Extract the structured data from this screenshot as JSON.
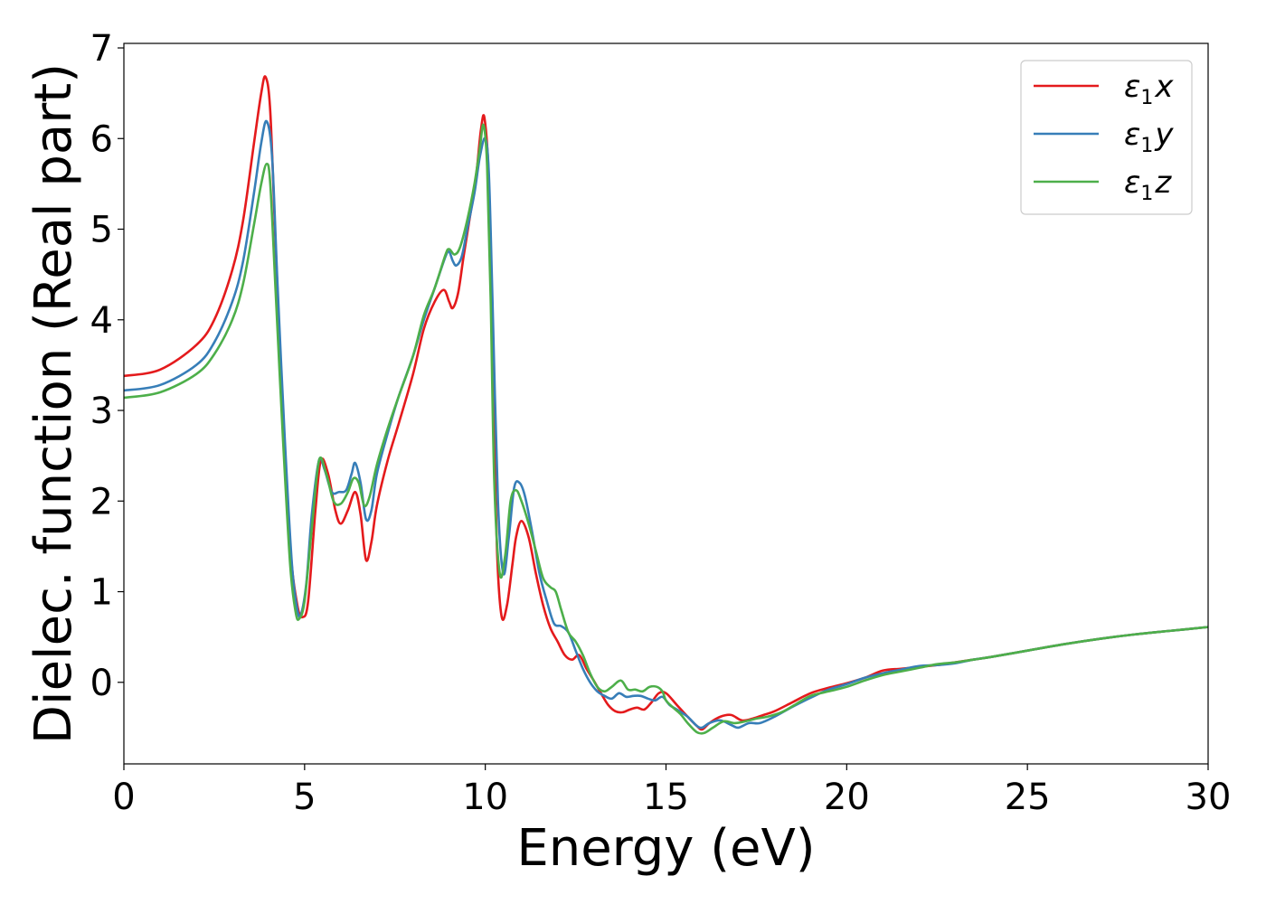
{
  "chart_data": {
    "type": "line",
    "xlabel": "Energy (eV)",
    "ylabel": "Dielec. function (Real part)",
    "xlim": [
      0,
      30
    ],
    "ylim": [
      -0.9,
      7.05
    ],
    "xticks": [
      0,
      5,
      10,
      15,
      20,
      25,
      30
    ],
    "yticks": [
      0,
      1,
      2,
      3,
      4,
      5,
      6,
      7
    ],
    "xtick_labels": [
      "0",
      "5",
      "10",
      "15",
      "20",
      "25",
      "30"
    ],
    "ytick_labels": [
      "0",
      "1",
      "2",
      "3",
      "4",
      "5",
      "6",
      "7"
    ],
    "grid": false,
    "legend_position": "top-right",
    "series": [
      {
        "name": "ε1x",
        "symbol": "ε",
        "subscript": "1",
        "suffix": "x",
        "color": "#e41a1c",
        "x": [
          0,
          1,
          2,
          2.5,
          3,
          3.3,
          3.6,
          3.8,
          3.92,
          4.05,
          4.2,
          4.4,
          4.6,
          4.8,
          4.95,
          5.1,
          5.3,
          5.45,
          5.65,
          5.85,
          6.0,
          6.2,
          6.4,
          6.55,
          6.7,
          6.85,
          7.0,
          7.3,
          7.6,
          8.0,
          8.3,
          8.6,
          8.85,
          9.0,
          9.1,
          9.25,
          9.4,
          9.6,
          9.75,
          9.88,
          9.98,
          10.1,
          10.2,
          10.32,
          10.45,
          10.6,
          10.75,
          10.85,
          11.0,
          11.2,
          11.4,
          11.6,
          11.8,
          12.0,
          12.2,
          12.4,
          12.6,
          12.8,
          13.0,
          13.2,
          13.4,
          13.6,
          13.8,
          14.0,
          14.2,
          14.4,
          14.6,
          14.8,
          15.0,
          15.3,
          15.6,
          15.85,
          16.0,
          16.2,
          16.5,
          16.8,
          17.1,
          17.4,
          17.7,
          18.0,
          18.5,
          19.0,
          19.5,
          20.0,
          20.5,
          21.0,
          21.5,
          22.0,
          22.5,
          23.0,
          23.5,
          24.0,
          25.0,
          26.0,
          27.0,
          28.0,
          29.0,
          30.0
        ],
        "y": [
          3.38,
          3.45,
          3.72,
          4.0,
          4.55,
          5.1,
          5.95,
          6.5,
          6.68,
          6.3,
          4.8,
          3.0,
          1.5,
          0.85,
          0.72,
          0.9,
          1.9,
          2.45,
          2.3,
          1.9,
          1.75,
          1.9,
          2.1,
          1.85,
          1.35,
          1.55,
          1.95,
          2.45,
          2.85,
          3.4,
          3.9,
          4.2,
          4.33,
          4.2,
          4.13,
          4.3,
          4.7,
          5.2,
          5.6,
          6.1,
          6.22,
          5.5,
          3.5,
          1.5,
          0.73,
          0.85,
          1.3,
          1.6,
          1.78,
          1.6,
          1.2,
          0.85,
          0.6,
          0.45,
          0.3,
          0.25,
          0.3,
          0.15,
          0.02,
          -0.12,
          -0.25,
          -0.32,
          -0.33,
          -0.3,
          -0.28,
          -0.3,
          -0.22,
          -0.12,
          -0.12,
          -0.25,
          -0.38,
          -0.48,
          -0.52,
          -0.45,
          -0.38,
          -0.36,
          -0.42,
          -0.4,
          -0.36,
          -0.32,
          -0.22,
          -0.12,
          -0.06,
          -0.01,
          0.05,
          0.13,
          0.15,
          0.17,
          0.19,
          0.22,
          0.25,
          0.28,
          0.35,
          0.42,
          0.48,
          0.53,
          0.57,
          0.61
        ]
      },
      {
        "name": "ε1y",
        "symbol": "ε",
        "subscript": "1",
        "suffix": "y",
        "color": "#377eb8",
        "x": [
          0,
          1,
          2,
          2.5,
          3,
          3.3,
          3.6,
          3.8,
          3.95,
          4.1,
          4.25,
          4.45,
          4.65,
          4.8,
          4.9,
          5.05,
          5.2,
          5.4,
          5.55,
          5.75,
          5.95,
          6.15,
          6.3,
          6.4,
          6.55,
          6.7,
          6.85,
          7.0,
          7.3,
          7.6,
          8.0,
          8.3,
          8.6,
          8.9,
          9.0,
          9.1,
          9.2,
          9.35,
          9.5,
          9.7,
          9.85,
          10.0,
          10.1,
          10.2,
          10.35,
          10.5,
          10.65,
          10.8,
          10.95,
          11.1,
          11.3,
          11.5,
          11.7,
          11.9,
          12.1,
          12.3,
          12.5,
          12.7,
          12.9,
          13.1,
          13.3,
          13.5,
          13.7,
          13.9,
          14.1,
          14.3,
          14.5,
          14.7,
          14.9,
          15.1,
          15.3,
          15.6,
          15.85,
          16.0,
          16.2,
          16.5,
          16.8,
          17.0,
          17.3,
          17.6,
          18.0,
          18.5,
          19.0,
          19.5,
          20.0,
          20.5,
          21.0,
          21.5,
          22.0,
          22.5,
          23.0,
          23.5,
          24.0,
          25.0,
          26.0,
          27.0,
          28.0,
          29.0,
          30.0
        ],
        "y": [
          3.22,
          3.28,
          3.5,
          3.75,
          4.2,
          4.65,
          5.4,
          5.95,
          6.19,
          5.8,
          4.4,
          2.7,
          1.3,
          0.8,
          0.75,
          1.1,
          1.85,
          2.45,
          2.35,
          2.1,
          2.1,
          2.12,
          2.3,
          2.42,
          2.2,
          1.8,
          1.9,
          2.3,
          2.75,
          3.15,
          3.6,
          4.0,
          4.35,
          4.7,
          4.75,
          4.65,
          4.6,
          4.7,
          5.0,
          5.4,
          5.8,
          6.0,
          5.6,
          4.2,
          2.0,
          1.2,
          1.6,
          2.15,
          2.2,
          2.05,
          1.65,
          1.2,
          0.9,
          0.65,
          0.62,
          0.55,
          0.35,
          0.15,
          0.0,
          -0.1,
          -0.15,
          -0.18,
          -0.12,
          -0.16,
          -0.15,
          -0.15,
          -0.18,
          -0.2,
          -0.16,
          -0.25,
          -0.3,
          -0.38,
          -0.48,
          -0.5,
          -0.45,
          -0.42,
          -0.47,
          -0.5,
          -0.45,
          -0.45,
          -0.38,
          -0.27,
          -0.17,
          -0.08,
          -0.02,
          0.05,
          0.1,
          0.14,
          0.18,
          0.19,
          0.21,
          0.25,
          0.28,
          0.35,
          0.42,
          0.48,
          0.53,
          0.57,
          0.61
        ]
      },
      {
        "name": "ε1z",
        "symbol": "ε",
        "subscript": "1",
        "suffix": "z",
        "color": "#4daf4a",
        "x": [
          0,
          1,
          2,
          2.5,
          3,
          3.3,
          3.6,
          3.8,
          3.95,
          4.05,
          4.2,
          4.4,
          4.6,
          4.75,
          4.85,
          5.0,
          5.2,
          5.4,
          5.6,
          5.8,
          6.0,
          6.2,
          6.35,
          6.5,
          6.65,
          6.8,
          7.0,
          7.3,
          7.6,
          8.0,
          8.3,
          8.6,
          8.9,
          9.0,
          9.15,
          9.3,
          9.5,
          9.7,
          9.85,
          9.95,
          10.05,
          10.15,
          10.25,
          10.4,
          10.55,
          10.7,
          10.85,
          11.0,
          11.2,
          11.4,
          11.6,
          11.8,
          11.95,
          12.1,
          12.3,
          12.5,
          12.7,
          12.9,
          13.1,
          13.3,
          13.5,
          13.75,
          13.95,
          14.15,
          14.35,
          14.55,
          14.75,
          14.9,
          15.0,
          15.2,
          15.4,
          15.6,
          15.85,
          16.05,
          16.3,
          16.6,
          16.9,
          17.2,
          17.5,
          17.8,
          18.2,
          18.6,
          19.0,
          19.5,
          20.0,
          20.5,
          21.0,
          21.5,
          22.0,
          22.5,
          23.0,
          23.5,
          24.0,
          25.0,
          26.0,
          27.0,
          28.0,
          29.0,
          30.0
        ],
        "y": [
          3.14,
          3.2,
          3.4,
          3.62,
          4.0,
          4.4,
          5.05,
          5.5,
          5.72,
          5.5,
          4.3,
          2.7,
          1.3,
          0.78,
          0.7,
          0.9,
          1.7,
          2.45,
          2.3,
          2.0,
          1.97,
          2.1,
          2.25,
          2.2,
          1.95,
          2.05,
          2.4,
          2.8,
          3.15,
          3.6,
          4.05,
          4.35,
          4.72,
          4.78,
          4.72,
          4.8,
          5.1,
          5.5,
          5.9,
          6.15,
          5.7,
          4.2,
          2.2,
          1.2,
          1.4,
          2.0,
          2.12,
          2.0,
          1.75,
          1.45,
          1.15,
          1.05,
          1.0,
          0.8,
          0.55,
          0.45,
          0.3,
          0.1,
          -0.05,
          -0.1,
          -0.05,
          0.02,
          -0.08,
          -0.08,
          -0.1,
          -0.05,
          -0.05,
          -0.1,
          -0.2,
          -0.28,
          -0.35,
          -0.45,
          -0.55,
          -0.56,
          -0.5,
          -0.43,
          -0.45,
          -0.43,
          -0.4,
          -0.38,
          -0.33,
          -0.24,
          -0.15,
          -0.1,
          -0.05,
          0.02,
          0.08,
          0.12,
          0.16,
          0.2,
          0.22,
          0.25,
          0.28,
          0.35,
          0.42,
          0.48,
          0.53,
          0.57,
          0.61
        ]
      }
    ]
  }
}
